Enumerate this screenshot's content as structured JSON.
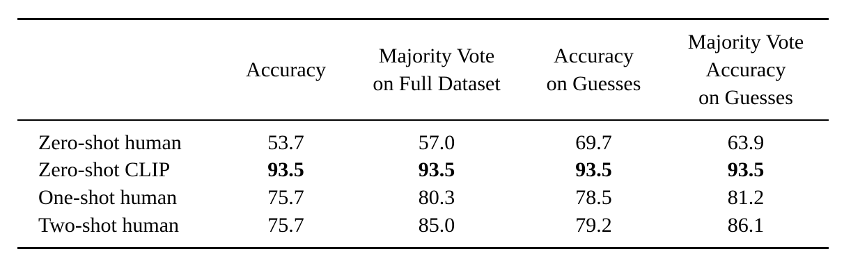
{
  "table": {
    "headers": [
      {
        "lines": [
          "Accuracy"
        ]
      },
      {
        "lines": [
          "Majority Vote",
          "on Full Dataset"
        ]
      },
      {
        "lines": [
          "Accuracy",
          "on Guesses"
        ]
      },
      {
        "lines": [
          "Majority Vote",
          "Accuracy",
          "on Guesses"
        ]
      }
    ],
    "rows": [
      {
        "label": "Zero-shot human",
        "values": [
          "53.7",
          "57.0",
          "69.7",
          "63.9"
        ],
        "bold": false
      },
      {
        "label": "Zero-shot CLIP",
        "values": [
          "93.5",
          "93.5",
          "93.5",
          "93.5"
        ],
        "bold": true
      },
      {
        "label": "One-shot human",
        "values": [
          "75.7",
          "80.3",
          "78.5",
          "81.2"
        ],
        "bold": false
      },
      {
        "label": "Two-shot human",
        "values": [
          "75.7",
          "85.0",
          "79.2",
          "86.1"
        ],
        "bold": false
      }
    ]
  }
}
